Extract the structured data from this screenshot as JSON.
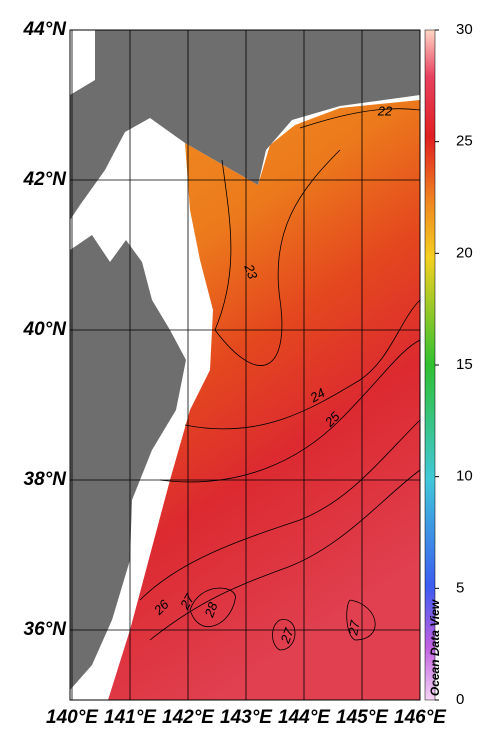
{
  "map": {
    "lat_ticks": [
      {
        "value": 44,
        "label": "44°N"
      },
      {
        "value": 42,
        "label": "42°N"
      },
      {
        "value": 40,
        "label": "40°N"
      },
      {
        "value": 38,
        "label": "38°N"
      },
      {
        "value": 36,
        "label": "36°N"
      }
    ],
    "lon_ticks": [
      {
        "value": 140,
        "label": "140°E"
      },
      {
        "value": 141,
        "label": "141°E"
      },
      {
        "value": 142,
        "label": "142°E"
      },
      {
        "value": 143,
        "label": "143°E"
      },
      {
        "value": 144,
        "label": "144°E"
      },
      {
        "value": 145,
        "label": "145°E"
      },
      {
        "value": 146,
        "label": "146°E"
      }
    ],
    "contour_labels": [
      "22",
      "23",
      "24",
      "25",
      "26",
      "27",
      "28",
      "27",
      "27"
    ],
    "colorbar": {
      "lim": [
        0,
        30
      ],
      "ticks": [
        0,
        5,
        10,
        15,
        20,
        25,
        30
      ]
    },
    "credit": "Ocean Data View"
  }
}
